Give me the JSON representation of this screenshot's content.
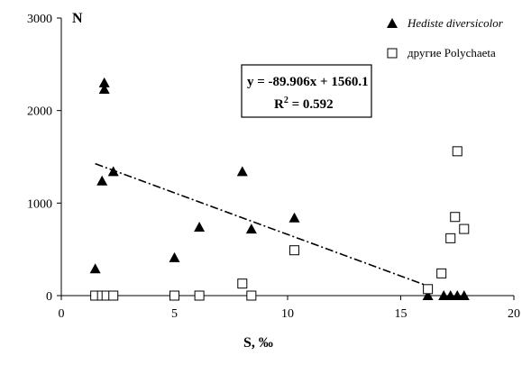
{
  "chart_data": {
    "type": "scatter",
    "xlabel": "S, ‰",
    "ylabel": "N",
    "xlim": [
      0,
      20
    ],
    "ylim": [
      0,
      3000
    ],
    "x_ticks": [
      "0",
      "5",
      "10",
      "15",
      "20"
    ],
    "y_ticks": [
      "0",
      "1000",
      "2000",
      "3000"
    ],
    "grid": false,
    "legend_position": "top-right",
    "series": [
      {
        "name": "Hediste diversicolor",
        "marker": "filled-triangle",
        "color": "#000000",
        "points": [
          {
            "x": 1.5,
            "y": 290
          },
          {
            "x": 1.8,
            "y": 1240
          },
          {
            "x": 1.9,
            "y": 2230
          },
          {
            "x": 1.9,
            "y": 2300
          },
          {
            "x": 2.3,
            "y": 1340
          },
          {
            "x": 5.0,
            "y": 410
          },
          {
            "x": 6.1,
            "y": 740
          },
          {
            "x": 8.0,
            "y": 1340
          },
          {
            "x": 8.4,
            "y": 720
          },
          {
            "x": 10.3,
            "y": 840
          },
          {
            "x": 16.2,
            "y": 0
          },
          {
            "x": 16.9,
            "y": 0
          },
          {
            "x": 17.2,
            "y": 0
          },
          {
            "x": 17.5,
            "y": 0
          },
          {
            "x": 17.8,
            "y": 0
          }
        ]
      },
      {
        "name": "другие Polychaeta",
        "marker": "open-square",
        "color": "#000000",
        "points": [
          {
            "x": 1.5,
            "y": 0
          },
          {
            "x": 1.8,
            "y": 0
          },
          {
            "x": 2.0,
            "y": 0
          },
          {
            "x": 2.3,
            "y": 0
          },
          {
            "x": 5.0,
            "y": 0
          },
          {
            "x": 6.1,
            "y": 0
          },
          {
            "x": 8.0,
            "y": 130
          },
          {
            "x": 8.4,
            "y": 0
          },
          {
            "x": 10.3,
            "y": 490
          },
          {
            "x": 16.2,
            "y": 70
          },
          {
            "x": 16.8,
            "y": 240
          },
          {
            "x": 17.2,
            "y": 620
          },
          {
            "x": 17.4,
            "y": 850
          },
          {
            "x": 17.5,
            "y": 1560
          },
          {
            "x": 17.8,
            "y": 720
          }
        ]
      }
    ],
    "trendline": {
      "slope": -89.906,
      "intercept": 1560.1,
      "x_from": 1.5,
      "x_to": 16.2,
      "style": "dash-dot"
    },
    "annotation": {
      "equation": "y = -89.906x + 1560.1",
      "r2_prefix": "R",
      "r2_sup": "2",
      "r2_suffix": " = 0.592"
    }
  }
}
